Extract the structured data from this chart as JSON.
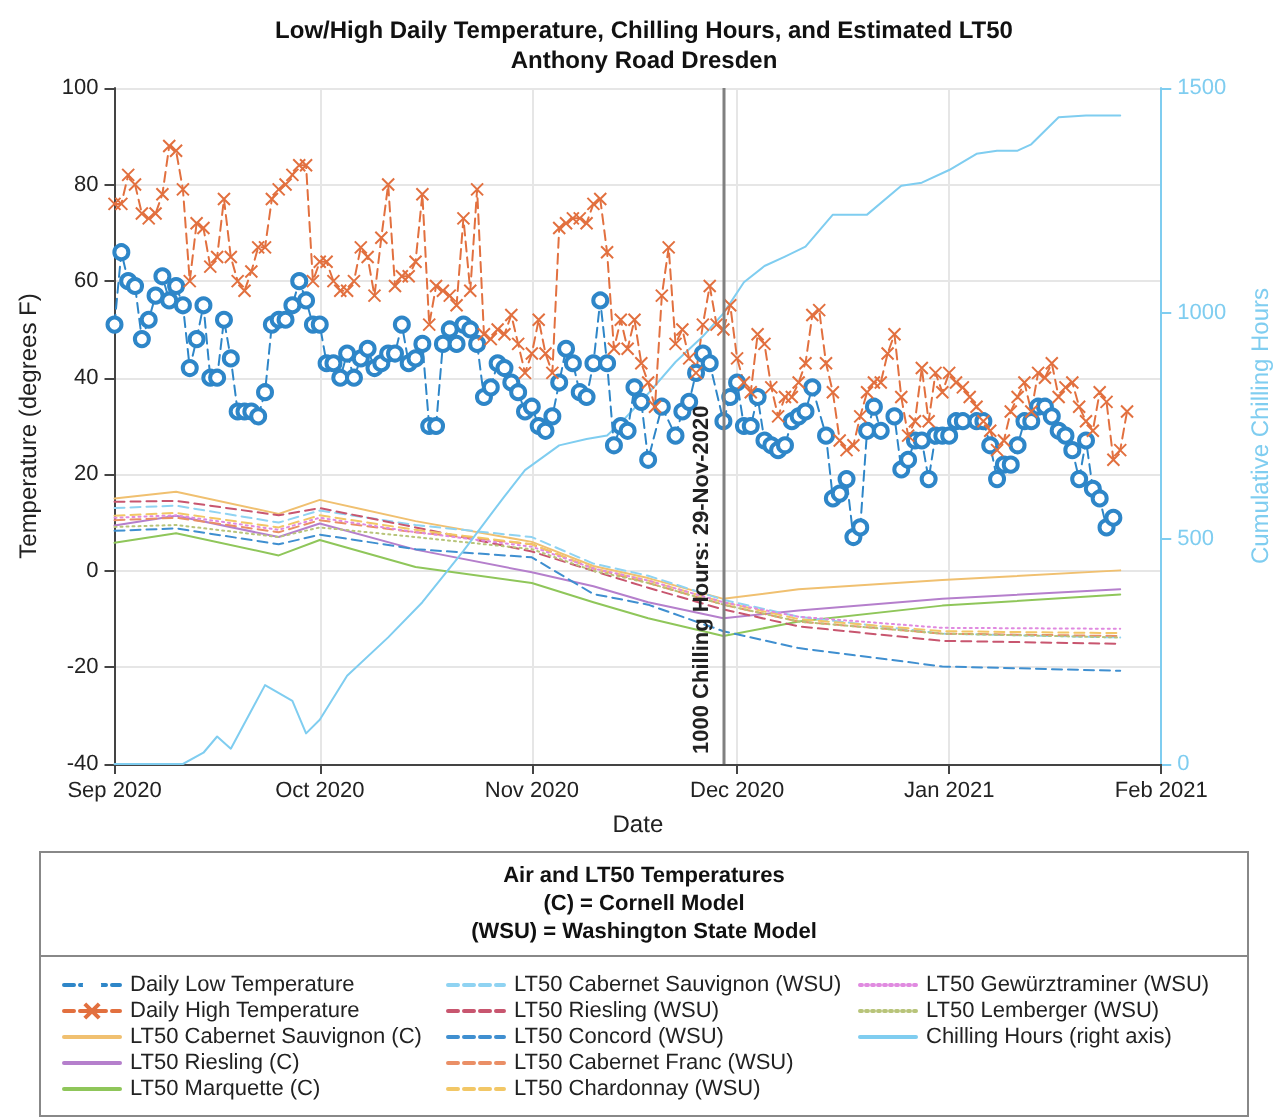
{
  "chart_data": {
    "type": "line",
    "title": "Low/High Daily Temperature, Chilling Hours, and Estimated LT50",
    "subtitle": "Anthony Road Dresden",
    "xlabel": "Date",
    "ylabel": "Temperature (degrees F)",
    "y2label": "Cumulative Chilling Hours",
    "legend_title": "Air and LT50 Temperatures\n(C) = Cornell Model\n(WSU) = Washington State Model",
    "legend": "bottom",
    "grid": true,
    "marker": "none",
    "line_style": "solid",
    "xlim": [
      "2020-09-01",
      "2021-02-01"
    ],
    "xticks": [
      {
        "value": "2020-09-01",
        "label": "Sep 2020"
      },
      {
        "value": "2020-10-01",
        "label": "Oct 2020"
      },
      {
        "value": "2020-11-01",
        "label": "Nov 2020"
      },
      {
        "value": "2020-12-01",
        "label": "Dec 2020"
      },
      {
        "value": "2021-01-01",
        "label": "Jan 2021"
      },
      {
        "value": "2021-02-01",
        "label": "Feb 2021"
      }
    ],
    "ylim": [
      -40,
      100
    ],
    "yticks": [
      -40,
      -20,
      0,
      20,
      40,
      60,
      80,
      100
    ],
    "y2lim": [
      0,
      1500
    ],
    "y2ticks": [
      0,
      500,
      1000,
      1500
    ],
    "ref_lines": [
      {
        "axis": "x",
        "value": "2020-11-29",
        "label": "1000 Chilling Hours: 29-Nov-2020",
        "color": "#808080"
      }
    ],
    "x": [
      "2020-09-01",
      "2020-09-10",
      "2020-09-25",
      "2020-10-01",
      "2020-10-15",
      "2020-11-01",
      "2020-11-10",
      "2020-11-18",
      "2020-11-29",
      "2020-12-10",
      "2020-12-31",
      "2021-01-26"
    ],
    "series": [
      {
        "name": "Daily Low Temperature",
        "color": "#2e86c8",
        "marker": "circle",
        "line_style": "dashed",
        "x": [
          "2020-09-01",
          "2020-09-02",
          "2020-09-03",
          "2020-09-04",
          "2020-09-05",
          "2020-09-06",
          "2020-09-07",
          "2020-09-08",
          "2020-09-09",
          "2020-09-10",
          "2020-09-11",
          "2020-09-12",
          "2020-09-13",
          "2020-09-14",
          "2020-09-15",
          "2020-09-16",
          "2020-09-17",
          "2020-09-18",
          "2020-09-19",
          "2020-09-20",
          "2020-09-21",
          "2020-09-22",
          "2020-09-23",
          "2020-09-24",
          "2020-09-25",
          "2020-09-26",
          "2020-09-27",
          "2020-09-28",
          "2020-09-29",
          "2020-09-30",
          "2020-10-01",
          "2020-10-02",
          "2020-10-03",
          "2020-10-04",
          "2020-10-05",
          "2020-10-06",
          "2020-10-07",
          "2020-10-08",
          "2020-10-09",
          "2020-10-10",
          "2020-10-11",
          "2020-10-12",
          "2020-10-13",
          "2020-10-14",
          "2020-10-15",
          "2020-10-16",
          "2020-10-17",
          "2020-10-18",
          "2020-10-19",
          "2020-10-20",
          "2020-10-21",
          "2020-10-22",
          "2020-10-23",
          "2020-10-24",
          "2020-10-25",
          "2020-10-26",
          "2020-10-27",
          "2020-10-28",
          "2020-10-29",
          "2020-10-30",
          "2020-10-31",
          "2020-11-01",
          "2020-11-02",
          "2020-11-03",
          "2020-11-04",
          "2020-11-05",
          "2020-11-06",
          "2020-11-07",
          "2020-11-08",
          "2020-11-09",
          "2020-11-10",
          "2020-11-11",
          "2020-11-12",
          "2020-11-13",
          "2020-11-14",
          "2020-11-15",
          "2020-11-16",
          "2020-11-17",
          "2020-11-18",
          "2020-11-20",
          "2020-11-22",
          "2020-11-23",
          "2020-11-24",
          "2020-11-25",
          "2020-11-26",
          "2020-11-27",
          "2020-11-29",
          "2020-11-30",
          "2020-12-01",
          "2020-12-02",
          "2020-12-03",
          "2020-12-04",
          "2020-12-05",
          "2020-12-06",
          "2020-12-07",
          "2020-12-08",
          "2020-12-09",
          "2020-12-10",
          "2020-12-11",
          "2020-12-12",
          "2020-12-14",
          "2020-12-15",
          "2020-12-16",
          "2020-12-17",
          "2020-12-18",
          "2020-12-19",
          "2020-12-20",
          "2020-12-21",
          "2020-12-22",
          "2020-12-24",
          "2020-12-25",
          "2020-12-26",
          "2020-12-27",
          "2020-12-28",
          "2020-12-29",
          "2020-12-30",
          "2020-12-31",
          "2021-01-01",
          "2021-01-02",
          "2021-01-03",
          "2021-01-05",
          "2021-01-06",
          "2021-01-07",
          "2021-01-08",
          "2021-01-09",
          "2021-01-10",
          "2021-01-11",
          "2021-01-12",
          "2021-01-13",
          "2021-01-14",
          "2021-01-15",
          "2021-01-16",
          "2021-01-17",
          "2021-01-18",
          "2021-01-19",
          "2021-01-20",
          "2021-01-21",
          "2021-01-22",
          "2021-01-23",
          "2021-01-24",
          "2021-01-25"
        ],
        "values": [
          51,
          66,
          60,
          59,
          48,
          52,
          57,
          61,
          56,
          59,
          55,
          42,
          48,
          55,
          40,
          40,
          52,
          44,
          33,
          33,
          33,
          32,
          37,
          51,
          52,
          52,
          55,
          60,
          56,
          51,
          51,
          43,
          43,
          40,
          45,
          40,
          44,
          46,
          42,
          43,
          45,
          45,
          51,
          43,
          44,
          47,
          30,
          30,
          47,
          50,
          47,
          51,
          50,
          47,
          36,
          38,
          43,
          42,
          39,
          37,
          33,
          34,
          30,
          29,
          32,
          39,
          46,
          43,
          37,
          36,
          43,
          56,
          43,
          26,
          30,
          29,
          38,
          35,
          23,
          34,
          28,
          33,
          35,
          41,
          45,
          43,
          31,
          36,
          39,
          30,
          30,
          36,
          27,
          26,
          25,
          26,
          31,
          32,
          33,
          38,
          28,
          15,
          16,
          19,
          7,
          9,
          29,
          34,
          29,
          32,
          21,
          23,
          27,
          27,
          19,
          28,
          28,
          28,
          31,
          31,
          31,
          31,
          26,
          19,
          22,
          22,
          26,
          31,
          31,
          34,
          34,
          32,
          29,
          28,
          25,
          19,
          27,
          17,
          15,
          9,
          11
        ]
      },
      {
        "name": "Daily High Temperature",
        "color": "#e2703f",
        "marker": "cross",
        "line_style": "dashed",
        "x": [
          "2020-09-01",
          "2020-09-02",
          "2020-09-03",
          "2020-09-04",
          "2020-09-05",
          "2020-09-06",
          "2020-09-07",
          "2020-09-08",
          "2020-09-09",
          "2020-09-10",
          "2020-09-11",
          "2020-09-12",
          "2020-09-13",
          "2020-09-14",
          "2020-09-15",
          "2020-09-16",
          "2020-09-17",
          "2020-09-18",
          "2020-09-19",
          "2020-09-20",
          "2020-09-21",
          "2020-09-22",
          "2020-09-23",
          "2020-09-24",
          "2020-09-25",
          "2020-09-26",
          "2020-09-27",
          "2020-09-28",
          "2020-09-29",
          "2020-09-30",
          "2020-10-01",
          "2020-10-02",
          "2020-10-03",
          "2020-10-04",
          "2020-10-05",
          "2020-10-06",
          "2020-10-07",
          "2020-10-08",
          "2020-10-09",
          "2020-10-10",
          "2020-10-11",
          "2020-10-12",
          "2020-10-13",
          "2020-10-14",
          "2020-10-15",
          "2020-10-16",
          "2020-10-17",
          "2020-10-18",
          "2020-10-19",
          "2020-10-20",
          "2020-10-21",
          "2020-10-22",
          "2020-10-23",
          "2020-10-24",
          "2020-10-25",
          "2020-10-26",
          "2020-10-27",
          "2020-10-28",
          "2020-10-29",
          "2020-10-30",
          "2020-10-31",
          "2020-11-01",
          "2020-11-02",
          "2020-11-03",
          "2020-11-04",
          "2020-11-05",
          "2020-11-06",
          "2020-11-07",
          "2020-11-08",
          "2020-11-09",
          "2020-11-10",
          "2020-11-11",
          "2020-11-12",
          "2020-11-13",
          "2020-11-14",
          "2020-11-15",
          "2020-11-16",
          "2020-11-17",
          "2020-11-18",
          "2020-11-19",
          "2020-11-20",
          "2020-11-21",
          "2020-11-22",
          "2020-11-23",
          "2020-11-24",
          "2020-11-25",
          "2020-11-26",
          "2020-11-27",
          "2020-11-28",
          "2020-11-29",
          "2020-11-30",
          "2020-12-01",
          "2020-12-02",
          "2020-12-03",
          "2020-12-04",
          "2020-12-05",
          "2020-12-06",
          "2020-12-07",
          "2020-12-08",
          "2020-12-09",
          "2020-12-10",
          "2020-12-11",
          "2020-12-12",
          "2020-12-13",
          "2020-12-14",
          "2020-12-15",
          "2020-12-16",
          "2020-12-17",
          "2020-12-18",
          "2020-12-19",
          "2020-12-20",
          "2020-12-21",
          "2020-12-22",
          "2020-12-23",
          "2020-12-24",
          "2020-12-25",
          "2020-12-26",
          "2020-12-27",
          "2020-12-28",
          "2020-12-29",
          "2020-12-30",
          "2020-12-31",
          "2021-01-01",
          "2021-01-02",
          "2021-01-03",
          "2021-01-04",
          "2021-01-05",
          "2021-01-06",
          "2021-01-07",
          "2021-01-08",
          "2021-01-09",
          "2021-01-10",
          "2021-01-11",
          "2021-01-12",
          "2021-01-13",
          "2021-01-14",
          "2021-01-15",
          "2021-01-16",
          "2021-01-17",
          "2021-01-18",
          "2021-01-19",
          "2021-01-20",
          "2021-01-21",
          "2021-01-22",
          "2021-01-23",
          "2021-01-24",
          "2021-01-25",
          "2021-01-26",
          "2021-01-27"
        ],
        "values": [
          76,
          76,
          82,
          80,
          74,
          73,
          74,
          78,
          88,
          87,
          79,
          60,
          72,
          71,
          63,
          65,
          77,
          65,
          60,
          58,
          62,
          67,
          67,
          77,
          79,
          80,
          82,
          84,
          84,
          60,
          64,
          64,
          60,
          58,
          58,
          60,
          67,
          65,
          57,
          69,
          80,
          59,
          61,
          61,
          64,
          78,
          51,
          59,
          58,
          57,
          55,
          73,
          58,
          79,
          49,
          48,
          50,
          49,
          53,
          47,
          41,
          45,
          52,
          45,
          41,
          71,
          72,
          73,
          73,
          72,
          76,
          77,
          66,
          46,
          52,
          46,
          52,
          43,
          39,
          34,
          57,
          67,
          47,
          50,
          44,
          41,
          51,
          59,
          51,
          50,
          55,
          44,
          39,
          37,
          49,
          47,
          38,
          32,
          36,
          36,
          39,
          43,
          53,
          54,
          43,
          37,
          27,
          25,
          26,
          32,
          37,
          39,
          39,
          45,
          49,
          36,
          28,
          31,
          42,
          31,
          41,
          37,
          41,
          39,
          38,
          36,
          34,
          31,
          29,
          25,
          27,
          33,
          36,
          39,
          33,
          41,
          40,
          43,
          36,
          38,
          39,
          34,
          31,
          29,
          37,
          35,
          23,
          25,
          33
        ]
      },
      {
        "name": "LT50 Cabernet Sauvignon (C)",
        "color": "#f0c070",
        "values": [
          15,
          16.4,
          11.8,
          14.7,
          10.3,
          6,
          1,
          -1.5,
          -5.8,
          -3.8,
          -1.9,
          0.1
        ]
      },
      {
        "name": "LT50 Riesling (C)",
        "color": "#b57fcc",
        "values": [
          9.4,
          11.4,
          7,
          9.8,
          4.4,
          -0.3,
          -3.2,
          -6.5,
          -9.8,
          -8.2,
          -5.8,
          -3.8
        ]
      },
      {
        "name": "LT50 Marquette (C)",
        "color": "#8fc65a",
        "values": [
          5.8,
          7.8,
          3.2,
          6.4,
          0.8,
          -2.5,
          -6.5,
          -9.8,
          -13.5,
          -10.5,
          -7.2,
          -4.9
        ]
      },
      {
        "name": "LT50 Cabernet Sauvignon (WSU)",
        "color": "#8fd3f2",
        "line_style": "dashed",
        "values": [
          13,
          13.5,
          10,
          12.5,
          9.5,
          7,
          1.5,
          -1,
          -6,
          -9.5,
          -13,
          -13.8
        ]
      },
      {
        "name": "LT50 Riesling (WSU)",
        "color": "#c8566f",
        "line_style": "dashed",
        "values": [
          14.3,
          14.5,
          11.5,
          13,
          9,
          4,
          0,
          -3.5,
          -8,
          -11.5,
          -14.5,
          -15.1
        ]
      },
      {
        "name": "LT50 Concord (WSU)",
        "color": "#3f8fd0",
        "line_style": "dashed",
        "values": [
          8.3,
          8.8,
          5.5,
          7.5,
          4.5,
          2.8,
          -4.8,
          -7,
          -12.5,
          -16,
          -19.8,
          -20.7
        ]
      },
      {
        "name": "LT50 Cabernet Franc (WSU)",
        "color": "#ea8f66",
        "line_style": "dashed",
        "values": [
          10.5,
          11,
          8,
          10.5,
          8,
          5.5,
          0.5,
          -2.5,
          -7,
          -10.5,
          -13,
          -13.5
        ]
      },
      {
        "name": "LT50 Chardonnay (WSU)",
        "color": "#f2c766",
        "line_style": "dashed",
        "values": [
          11.4,
          12,
          9,
          11.5,
          8.5,
          5.5,
          0.5,
          -2,
          -6.5,
          -10,
          -12.5,
          -12.9
        ]
      },
      {
        "name": "LT50 Gewürztraminer (WSU)",
        "color": "#e08ae0",
        "line_style": "dotted",
        "values": [
          11,
          11.5,
          8.5,
          11,
          8,
          5,
          0.5,
          -2,
          -6.5,
          -9.5,
          -11.8,
          -12
        ]
      },
      {
        "name": "LT50 Lemberger (WSU)",
        "color": "#b8c47a",
        "line_style": "dotted",
        "values": [
          9.1,
          9.5,
          7,
          9,
          7,
          4.5,
          0,
          -2.5,
          -7,
          -10.5,
          -13,
          -13.8
        ]
      },
      {
        "name": "Chilling Hours (right axis)",
        "color": "#7fcdf0",
        "axis": "y2",
        "x": [
          "2020-09-01",
          "2020-09-11",
          "2020-09-14",
          "2020-09-16",
          "2020-09-18",
          "2020-09-23",
          "2020-09-27",
          "2020-09-29",
          "2020-10-01",
          "2020-10-05",
          "2020-10-11",
          "2020-10-16",
          "2020-10-22",
          "2020-10-28",
          "2020-10-31",
          "2020-11-05",
          "2020-11-09",
          "2020-11-12",
          "2020-11-14",
          "2020-11-18",
          "2020-11-22",
          "2020-11-26",
          "2020-11-29",
          "2020-12-02",
          "2020-12-05",
          "2020-12-08",
          "2020-12-11",
          "2020-12-15",
          "2020-12-20",
          "2020-12-25",
          "2020-12-28",
          "2021-01-01",
          "2021-01-05",
          "2021-01-08",
          "2021-01-11",
          "2021-01-13",
          "2021-01-17",
          "2021-01-21",
          "2021-01-26"
        ],
        "values": [
          0,
          0,
          25,
          61,
          34,
          175,
          140,
          68,
          98,
          196,
          281,
          359,
          473,
          594,
          652,
          707,
          721,
          729,
          757,
          822,
          892,
          949,
          1000,
          1069,
          1105,
          1126,
          1148,
          1219,
          1219,
          1283,
          1290,
          1318,
          1354,
          1361,
          1361,
          1375,
          1435,
          1439,
          1439
        ]
      }
    ]
  }
}
